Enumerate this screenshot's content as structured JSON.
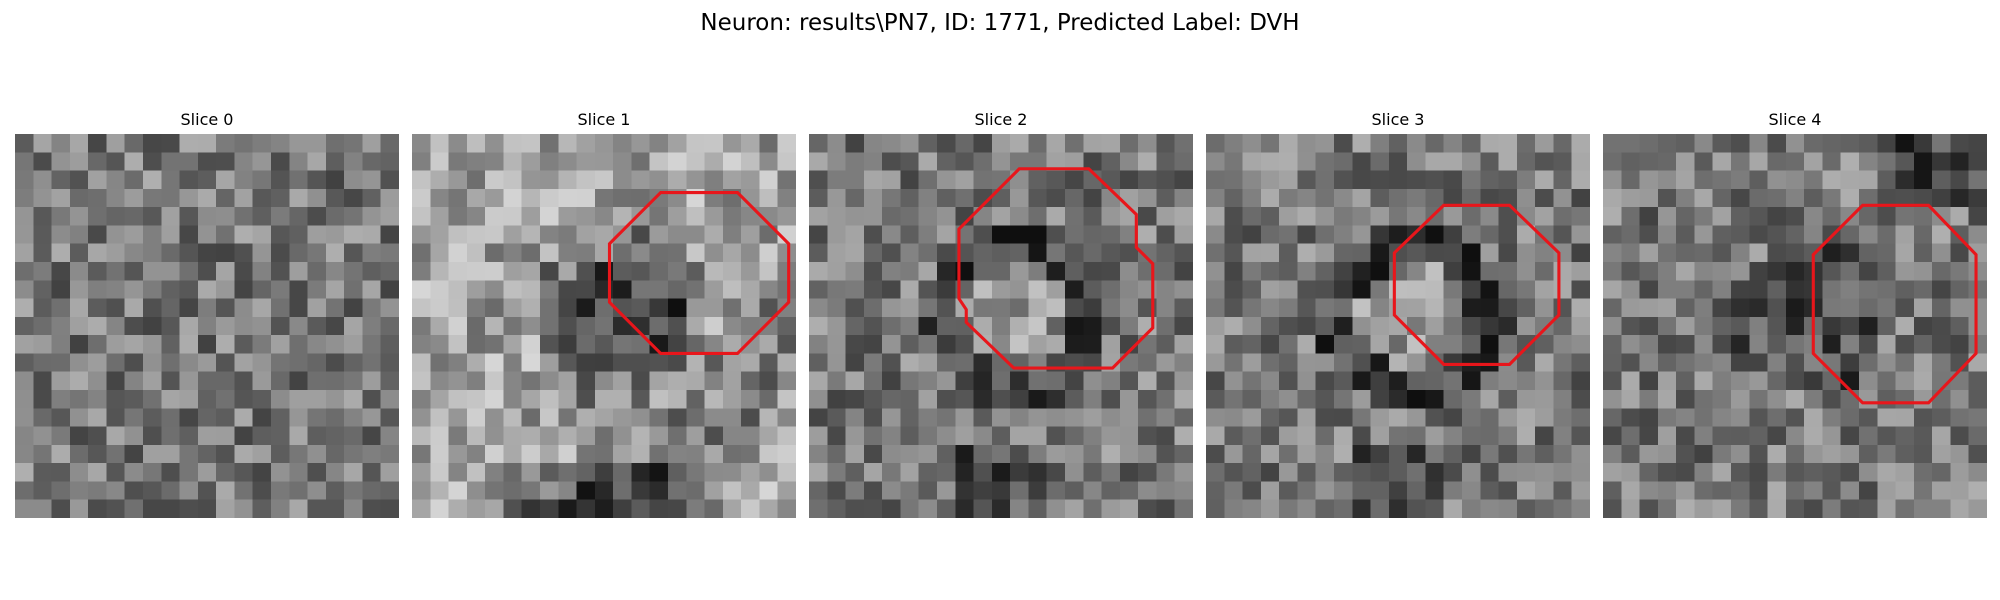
{
  "figure": {
    "title": "Neuron: results\\PN7, ID: 1771, Predicted Label: DVH"
  },
  "outline_color": "#e8161b",
  "image_colormap": "gray",
  "slices": [
    {
      "title": "Slice 0",
      "roi": [],
      "scene": "noise"
    },
    {
      "title": "Slice 1",
      "scene": "dark-blob",
      "roi": [
        [
          13.6,
          3.2
        ],
        [
          17.8,
          3.2
        ],
        [
          20.6,
          6.0
        ],
        [
          20.6,
          9.2
        ],
        [
          17.8,
          12.0
        ],
        [
          13.6,
          12.0
        ],
        [
          10.8,
          9.2
        ],
        [
          10.8,
          6.0
        ]
      ]
    },
    {
      "title": "Slice 2",
      "scene": "ring",
      "roi": [
        [
          11.5,
          1.9
        ],
        [
          15.3,
          1.9
        ],
        [
          17.9,
          4.4
        ],
        [
          17.9,
          6.2
        ],
        [
          18.8,
          7.1
        ],
        [
          18.8,
          10.6
        ],
        [
          16.6,
          12.8
        ],
        [
          11.2,
          12.8
        ],
        [
          8.6,
          10.3
        ],
        [
          8.6,
          9.6
        ],
        [
          8.2,
          9.0
        ],
        [
          8.2,
          5.2
        ]
      ]
    },
    {
      "title": "Slice 3",
      "scene": "ring",
      "roi": [
        [
          13.0,
          3.9
        ],
        [
          16.6,
          3.9
        ],
        [
          19.3,
          6.5
        ],
        [
          19.3,
          9.9
        ],
        [
          16.6,
          12.6
        ],
        [
          13.0,
          12.6
        ],
        [
          10.3,
          9.9
        ],
        [
          10.3,
          6.5
        ]
      ]
    },
    {
      "title": "Slice 4",
      "scene": "dark-disc",
      "roi": [
        [
          14.2,
          3.9
        ],
        [
          17.8,
          3.9
        ],
        [
          20.4,
          6.6
        ],
        [
          20.4,
          12.0
        ],
        [
          17.8,
          14.7
        ],
        [
          14.2,
          14.7
        ],
        [
          11.5,
          12.0
        ],
        [
          11.5,
          6.6
        ]
      ]
    }
  ]
}
